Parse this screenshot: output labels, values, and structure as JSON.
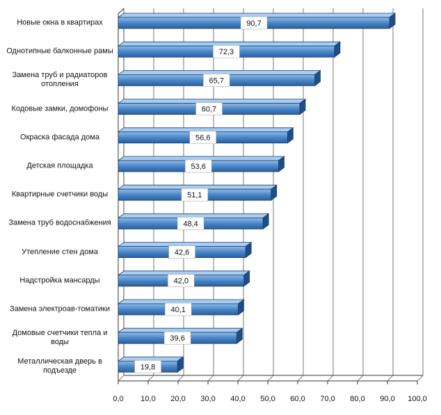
{
  "chart_data": {
    "type": "bar",
    "orientation": "horizontal",
    "color": "#3f7cc0",
    "categories": [
      "Новые окна в квартирах",
      "Однотипные балконные рамы",
      "Замена труб и радиаторов отопления",
      "Кодовые замки, домофоны",
      "Окраска фасада дома",
      "Детская площадка",
      "Квартирные счетчики воды",
      "Замена труб водоснабжения",
      "Утепление стен дома",
      "Надстройка мансарды",
      "Замена электроав-томатики",
      "Домовые счетчики тепла и воды",
      "Металлическая дверь в подъезде"
    ],
    "values": [
      90.7,
      72.3,
      65.7,
      60.7,
      56.6,
      53.6,
      51.1,
      48.4,
      42.6,
      42.0,
      40.1,
      39.6,
      19.8
    ],
    "value_labels": [
      "90,7",
      "72,3",
      "65,7",
      "60,7",
      "56,6",
      "53,6",
      "51,1",
      "48,4",
      "42,6",
      "42,0",
      "40,1",
      "39,6",
      "19,8"
    ],
    "xlim": [
      0,
      100
    ],
    "xticks": [
      {
        "value": 0,
        "label": "0,0"
      },
      {
        "value": 10,
        "label": "10,0"
      },
      {
        "value": 20,
        "label": "20,0"
      },
      {
        "value": 30,
        "label": "30,0"
      },
      {
        "value": 40,
        "label": "40,0"
      },
      {
        "value": 50,
        "label": "50,0"
      },
      {
        "value": 60,
        "label": "60,0"
      },
      {
        "value": 70,
        "label": "70,0"
      },
      {
        "value": 80,
        "label": "80,0"
      },
      {
        "value": 90,
        "label": "90,0"
      },
      {
        "value": 100,
        "label": "100,0"
      }
    ],
    "grid": true
  }
}
